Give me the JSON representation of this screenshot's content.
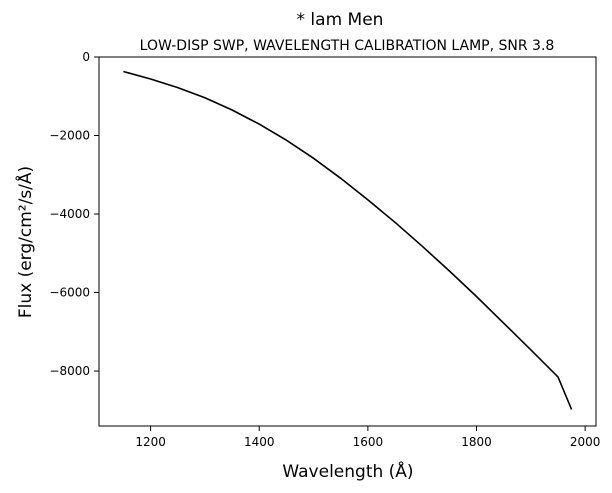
{
  "chart_data": {
    "type": "line",
    "title": "* lam Men",
    "subtitle": "LOW-DISP SWP, WAVELENGTH CALIBRATION LAMP, SNR 3.8",
    "xlabel": "Wavelength (Å)",
    "ylabel": "Flux (erg/cm²/s/Å)",
    "xlim": [
      1105,
      2020
    ],
    "ylim": [
      -9400,
      0
    ],
    "xticks": [
      1200,
      1400,
      1600,
      1800,
      2000
    ],
    "yticks": [
      0,
      -2000,
      -4000,
      -6000,
      -8000
    ],
    "grid": false,
    "line_color": "#000000",
    "series": [
      {
        "x": [
          1150,
          1200,
          1250,
          1300,
          1350,
          1400,
          1450,
          1500,
          1550,
          1600,
          1650,
          1700,
          1750,
          1800,
          1850,
          1900,
          1950,
          1975
        ],
        "values": [
          -370,
          -560,
          -780,
          -1040,
          -1350,
          -1710,
          -2120,
          -2580,
          -3090,
          -3640,
          -4210,
          -4820,
          -5450,
          -6100,
          -6780,
          -7460,
          -8150,
          -8980
        ]
      }
    ]
  }
}
